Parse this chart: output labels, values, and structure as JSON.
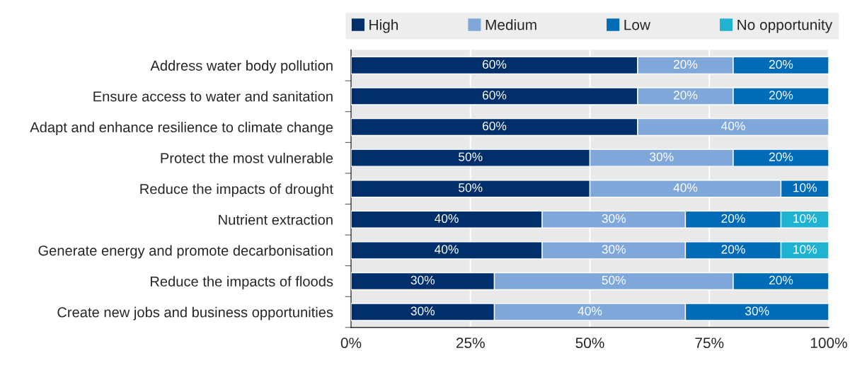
{
  "chart_data": {
    "type": "bar",
    "orientation": "horizontal",
    "stacked": true,
    "legend": "top",
    "grid": "x",
    "categories": [
      "Address water body pollution",
      "Ensure access to water and sanitation",
      "Adapt and enhance resilience to climate change",
      "Protect the most vulnerable",
      "Reduce the impacts of drought",
      "Nutrient extraction",
      "Generate energy and promote decarbonisation",
      "Reduce the impacts of floods",
      "Create new jobs and business opportunities"
    ],
    "series": [
      {
        "name": "High",
        "color": "#002f6c",
        "values": [
          60,
          60,
          60,
          50,
          50,
          40,
          40,
          30,
          30
        ],
        "value_labels": [
          "60%",
          "60%",
          "60%",
          "50%",
          "50%",
          "40%",
          "40%",
          "30%",
          "30%"
        ]
      },
      {
        "name": "Medium",
        "color": "#7fa7d9",
        "values": [
          20,
          20,
          40,
          30,
          40,
          30,
          30,
          50,
          40
        ],
        "value_labels": [
          "20%",
          "20%",
          "40%",
          "30%",
          "40%",
          "30%",
          "30%",
          "50%",
          "40%"
        ]
      },
      {
        "name": "Low",
        "color": "#006bb6",
        "values": [
          20,
          20,
          null,
          20,
          10,
          20,
          20,
          20,
          30
        ],
        "value_labels": [
          "20%",
          "20%",
          null,
          "20%",
          "10%",
          "20%",
          "20%",
          "20%",
          "30%"
        ]
      },
      {
        "name": "No opportunity",
        "color": "#1fb3d1",
        "values": [
          null,
          null,
          null,
          null,
          null,
          10,
          10,
          null,
          null
        ],
        "value_labels": [
          null,
          null,
          null,
          null,
          null,
          "10%",
          "10%",
          null,
          null
        ]
      }
    ],
    "xlim": [
      0,
      100
    ],
    "xticks": [
      {
        "value": 0,
        "label": "0%"
      },
      {
        "value": 25,
        "label": "25%"
      },
      {
        "value": 50,
        "label": "50%"
      },
      {
        "value": 75,
        "label": "75%"
      },
      {
        "value": 100,
        "label": "100%"
      }
    ]
  }
}
